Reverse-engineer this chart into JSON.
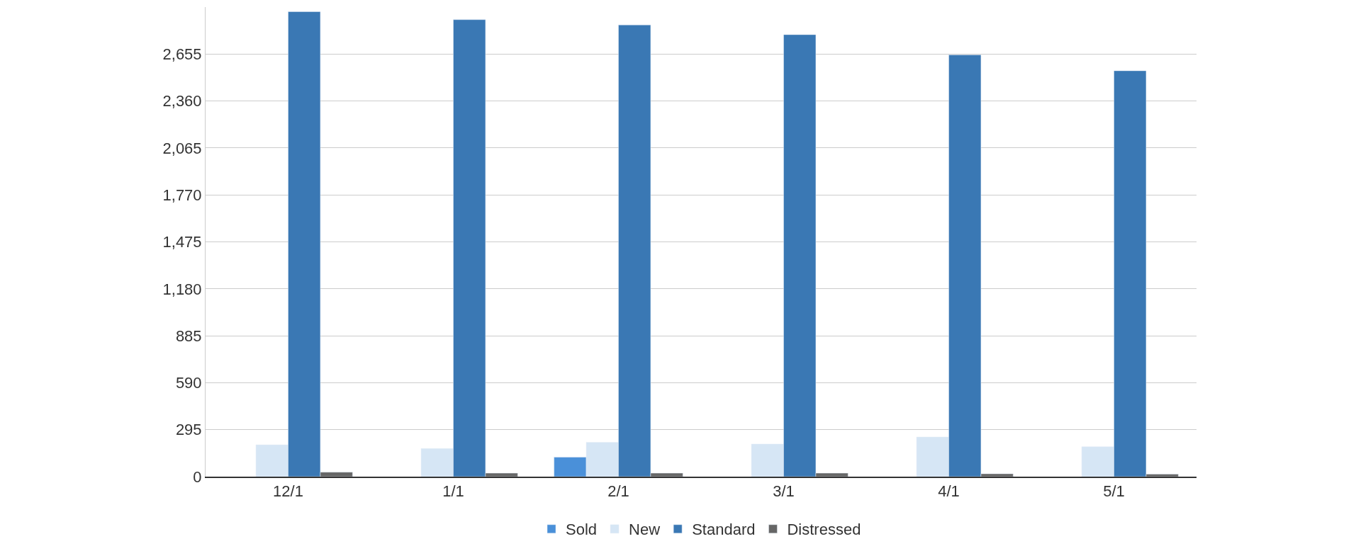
{
  "chart_data": {
    "type": "bar",
    "categories": [
      "12/1",
      "1/1",
      "2/1",
      "3/1",
      "4/1",
      "5/1"
    ],
    "series": [
      {
        "name": "Sold",
        "color": "#4a90d9",
        "values": [
          null,
          null,
          122,
          null,
          null,
          null
        ]
      },
      {
        "name": "New",
        "color": "#d6e6f5",
        "values": [
          200,
          177,
          216,
          205,
          249,
          188
        ]
      },
      {
        "name": "Standard",
        "color": "#3a78b4",
        "values": [
          2921,
          2871,
          2838,
          2777,
          2650,
          2550
        ]
      },
      {
        "name": "Distressed",
        "color": "#666666",
        "values": [
          28,
          22,
          22,
          22,
          18,
          16
        ]
      }
    ],
    "ylim": [
      0,
      2950
    ],
    "yticks": [
      {
        "value": 0,
        "label": "0"
      },
      {
        "value": 295,
        "label": "295"
      },
      {
        "value": 590,
        "label": "590"
      },
      {
        "value": 885,
        "label": "885"
      },
      {
        "value": 1180,
        "label": "1,180"
      },
      {
        "value": 1475,
        "label": "1,475"
      },
      {
        "value": 1770,
        "label": "1,770"
      },
      {
        "value": 2065,
        "label": "2,065"
      },
      {
        "value": 2360,
        "label": "2,360"
      },
      {
        "value": 2655,
        "label": "2,655"
      }
    ],
    "grid": "y",
    "legend": "bottom"
  }
}
